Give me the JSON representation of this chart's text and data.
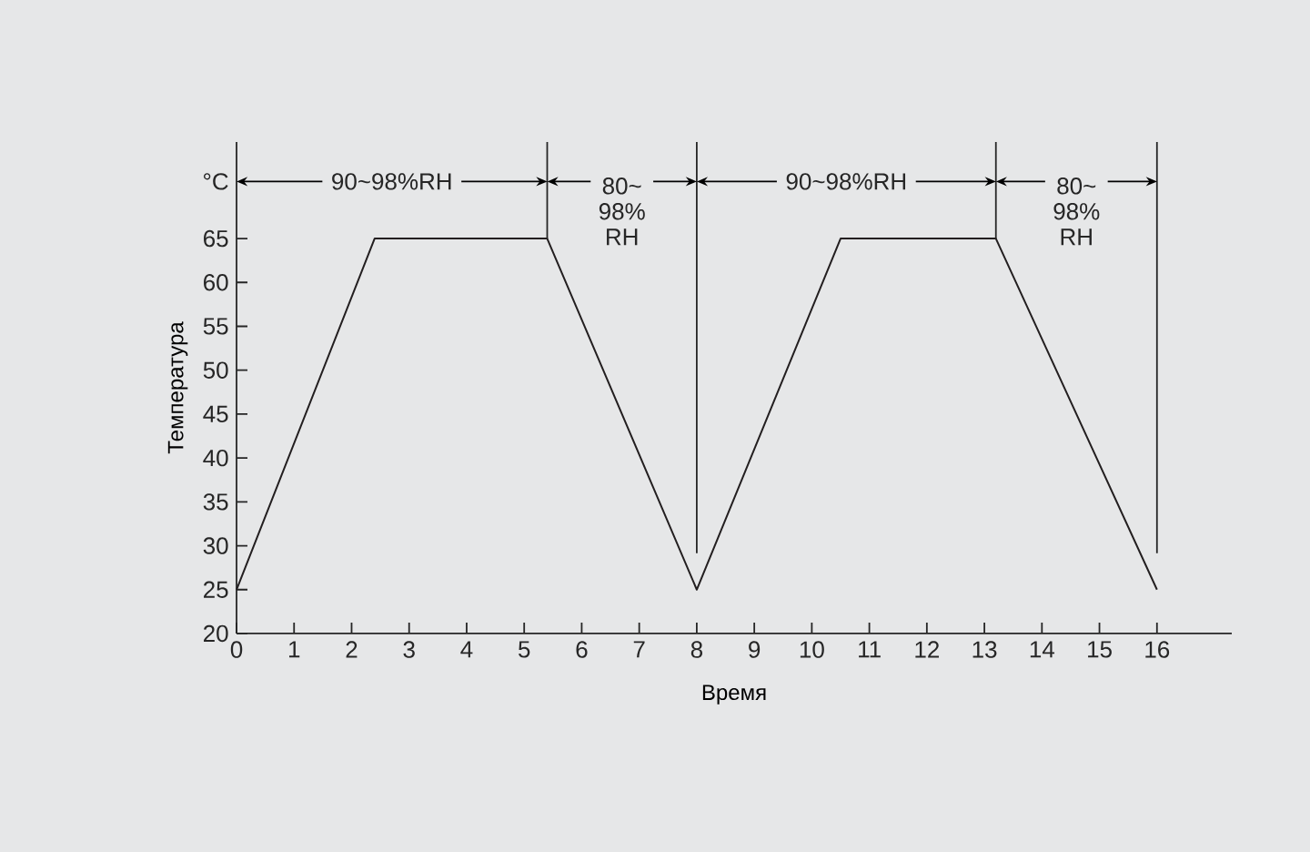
{
  "chart_data": {
    "type": "line",
    "xlabel": "Время",
    "ylabel": "Температура",
    "x": [
      0,
      2.4,
      5.4,
      8,
      10.5,
      13.2,
      16
    ],
    "series": [
      {
        "color": "#231f20",
        "values": [
          25,
          65,
          65,
          25,
          65,
          65,
          25
        ]
      }
    ],
    "xlim": [
      0,
      17.3
    ],
    "xticks": [
      0,
      1,
      2,
      3,
      4,
      5,
      6,
      7,
      8,
      9,
      10,
      11,
      12,
      13,
      14,
      15,
      16
    ],
    "ylim": [
      20,
      76
    ],
    "yticks": [
      20,
      25,
      30,
      35,
      40,
      45,
      50,
      55,
      60,
      65
    ],
    "ref_lines": [
      {
        "axis": "x",
        "value": 5.4
      },
      {
        "axis": "x",
        "value": 8
      },
      {
        "axis": "x",
        "value": 13.2
      },
      {
        "axis": "x",
        "value": 16
      }
    ],
    "annotations": [
      "°C",
      {
        "text": "90~98%RH",
        "x": 5.4,
        "y": 71.5
      },
      {
        "text": "80~ 98% RH",
        "x": 8,
        "y": 71.5
      },
      {
        "text": "90~98%RH",
        "x": 13.2,
        "y": 71.5
      },
      {
        "text": "80~ 98% RH",
        "x": 16,
        "y": 71.5
      }
    ],
    "grid": false,
    "marker": "none",
    "line_style": "solid"
  }
}
